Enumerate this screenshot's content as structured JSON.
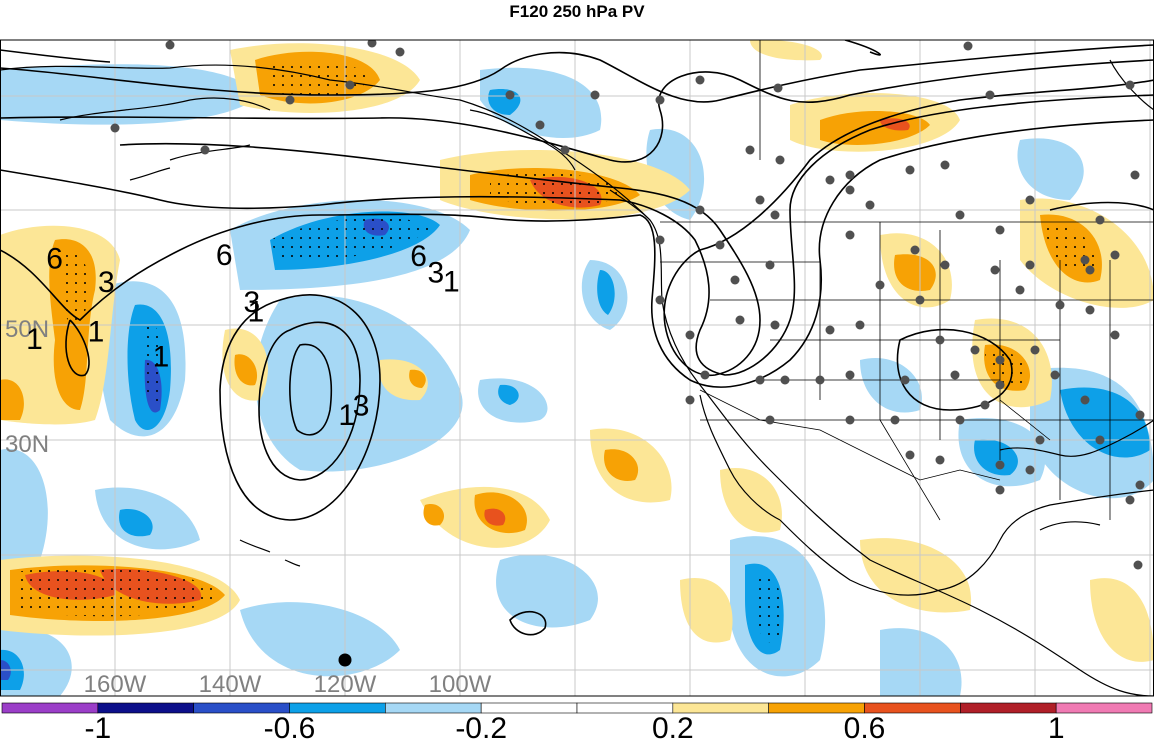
{
  "title": "F120 250 hPa PV",
  "lat_labels": [
    {
      "text": "50N",
      "lat": 50
    },
    {
      "text": "30N",
      "lat": 30
    }
  ],
  "lon_labels": [
    {
      "text": "160W",
      "lon": -160
    },
    {
      "text": "140W",
      "lon": -140
    },
    {
      "text": "120W",
      "lon": -120
    },
    {
      "text": "100W",
      "lon": -100
    }
  ],
  "contour_labels": [
    {
      "text": "6",
      "lon": -170.5,
      "lat": 59.8
    },
    {
      "text": "6",
      "lon": -141.0,
      "lat": 60.4
    },
    {
      "text": "6",
      "lon": -107.2,
      "lat": 60.3
    },
    {
      "text": "3",
      "lon": -161.5,
      "lat": 55.7
    },
    {
      "text": "3",
      "lon": -136.2,
      "lat": 52.3
    },
    {
      "text": "3",
      "lon": -104.2,
      "lat": 57.4
    },
    {
      "text": "3",
      "lon": -117.2,
      "lat": 34.3
    },
    {
      "text": "1",
      "lon": -135.5,
      "lat": 50.6
    },
    {
      "text": "1",
      "lon": -163.3,
      "lat": 47.1
    },
    {
      "text": "1",
      "lon": -174.0,
      "lat": 45.8
    },
    {
      "text": "1",
      "lon": -152.0,
      "lat": 42.8
    },
    {
      "text": "1",
      "lon": -119.7,
      "lat": 32.6
    },
    {
      "text": "1",
      "lon": -101.5,
      "lat": 55.8
    }
  ],
  "colorbar": {
    "colors": [
      "#9b3ec8",
      "#0c0f8a",
      "#2a4fc8",
      "#0da0e8",
      "#a6d8f5",
      "#ffffff",
      "#ffffff",
      "#fce696",
      "#f7a205",
      "#e8521e",
      "#b01f28",
      "#f07ab3"
    ],
    "ticks": [
      {
        "text": "-1",
        "value": -1
      },
      {
        "text": "-0.6",
        "value": -0.6
      },
      {
        "text": "-0.2",
        "value": -0.2
      },
      {
        "text": "0.2",
        "value": 0.2
      },
      {
        "text": "0.6",
        "value": 0.6
      },
      {
        "text": "1",
        "value": 1
      }
    ]
  }
}
